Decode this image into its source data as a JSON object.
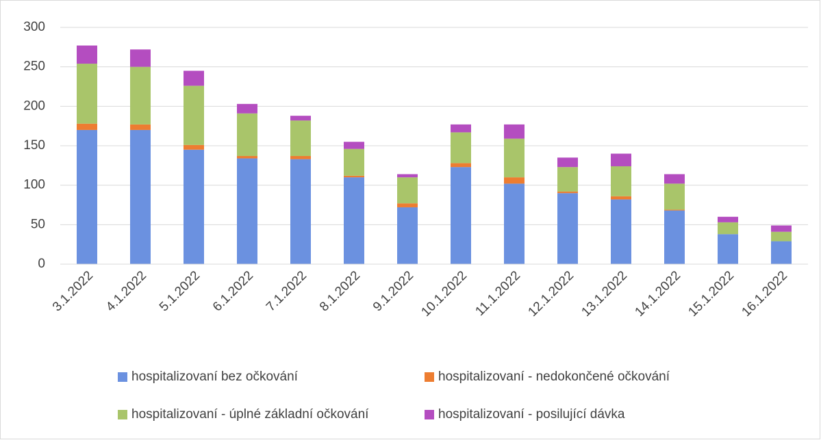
{
  "chart_data": {
    "type": "stacked_bar",
    "categories": [
      "3.1.2022",
      "4.1.2022",
      "5.1.2022",
      "6.1.2022",
      "7.1.2022",
      "8.1.2022",
      "9.1.2022",
      "10.1.2022",
      "11.1.2022",
      "12.1.2022",
      "13.1.2022",
      "14.1.2022",
      "15.1.2022",
      "16.1.2022"
    ],
    "series": [
      {
        "name": "hospitalizovaní bez očkování",
        "color": "#6b91e0",
        "values": [
          170,
          170,
          145,
          134,
          133,
          110,
          72,
          123,
          102,
          90,
          82,
          68,
          38,
          29
        ]
      },
      {
        "name": "hospitalizovaní - nedokončené očkování",
        "color": "#ed7d31",
        "values": [
          8,
          7,
          6,
          3,
          4,
          2,
          5,
          5,
          8,
          2,
          4,
          1,
          0,
          0
        ]
      },
      {
        "name": "hospitalizovaní - úplné základní očkování",
        "color": "#a9c56a",
        "values": [
          76,
          73,
          75,
          54,
          45,
          34,
          33,
          39,
          49,
          31,
          38,
          33,
          15,
          12
        ]
      },
      {
        "name": "hospitalizovaní - posilující dávka",
        "color": "#b44dc0",
        "values": [
          23,
          22,
          19,
          12,
          6,
          9,
          4,
          10,
          18,
          12,
          16,
          12,
          7,
          8
        ]
      }
    ],
    "ylim": [
      0,
      300
    ],
    "yticks": [
      0,
      50,
      100,
      150,
      200,
      250,
      300
    ],
    "grid": true
  }
}
